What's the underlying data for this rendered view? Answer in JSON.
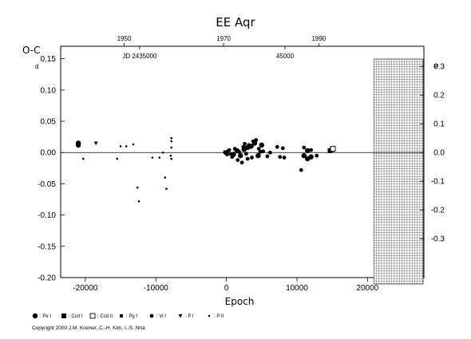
{
  "chart_data": {
    "type": "scatter",
    "title": "EE Aqr",
    "ylabel": "O-C",
    "ylabel_unit": "d",
    "xlabel": "Epoch",
    "xlim": [
      -23500,
      28000
    ],
    "ylim": [
      -0.2,
      0.17
    ],
    "x_ticks": [
      "-20000",
      "-10000",
      "0",
      "10000",
      "20000"
    ],
    "x_tick_values": [
      -20000,
      -10000,
      0,
      10000,
      20000
    ],
    "y_ticks": [
      "-0.20",
      "-0.15",
      "-0.10",
      "-0.05",
      "0.00",
      "0.05",
      "0.10",
      "0.15"
    ],
    "y_tick_values": [
      -0.2,
      -0.15,
      -0.1,
      -0.05,
      0.0,
      0.05,
      0.1,
      0.15
    ],
    "right_ticks": [
      "0.3",
      "0.2",
      "0.1",
      "0.0",
      "-0.1",
      "-0.2",
      "-0.3"
    ],
    "right_tick_values": [
      0.3,
      0.2,
      0.1,
      0.0,
      -0.1,
      -0.2,
      -0.3
    ],
    "right_unit": "P",
    "top_year_ticks": [
      "1950",
      "1970",
      "1990"
    ],
    "top_year_epochs": [
      -14500,
      -400,
      13100
    ],
    "jd_labels": [
      "JD 2435000",
      "45000"
    ],
    "jd_epochs": [
      -12300,
      8300
    ],
    "grid_region_x": [
      20900,
      28000
    ],
    "zero_line": true,
    "series": [
      {
        "name": ": Pe I",
        "marker": "filled-circle-large",
        "points": [
          [
            -21000,
            0.015
          ],
          [
            -21000,
            0.012
          ],
          [
            1000,
            -0.003
          ],
          [
            1500,
            0.003
          ],
          [
            2000,
            -0.005
          ],
          [
            2500,
            0.005
          ],
          [
            3000,
            0.008
          ],
          [
            3500,
            0.01
          ],
          [
            4000,
            0.015
          ],
          [
            4500,
            -0.005
          ],
          [
            5000,
            0.012
          ],
          [
            11000,
            -0.005
          ],
          [
            11500,
            0.003
          ],
          [
            12000,
            -0.007
          ],
          [
            11500,
            -0.01
          ]
        ]
      },
      {
        "name": ": Ccd I",
        "marker": "filled-square",
        "points": [
          [
            14700,
            0.003
          ],
          [
            15000,
            0.005
          ]
        ]
      },
      {
        "name": ": Ccd II",
        "marker": "open-square",
        "points": [
          [
            15100,
            0.006
          ]
        ]
      },
      {
        "name": ": Pg I",
        "marker": "filled-square-small",
        "points": [
          [
            -200,
            0.001
          ],
          [
            200,
            0.002
          ],
          [
            600,
            -0.002
          ]
        ]
      },
      {
        "name": ": Vi I",
        "marker": "filled-circle",
        "points": [
          [
            -200,
            0.0
          ],
          [
            100,
            -0.003
          ],
          [
            400,
            0.004
          ],
          [
            800,
            -0.007
          ],
          [
            1200,
            0.006
          ],
          [
            1600,
            -0.012
          ],
          [
            1800,
            0.001
          ],
          [
            2200,
            -0.016
          ],
          [
            2400,
            0.009
          ],
          [
            2800,
            -0.002
          ],
          [
            3200,
            0.012
          ],
          [
            3600,
            -0.008
          ],
          [
            3800,
            0.018
          ],
          [
            4200,
            0.02
          ],
          [
            4600,
            0.006
          ],
          [
            5200,
            0.002
          ],
          [
            5800,
            -0.006
          ],
          [
            6200,
            0.0
          ],
          [
            7200,
            0.009
          ],
          [
            7600,
            -0.007
          ],
          [
            8000,
            0.007
          ],
          [
            8200,
            -0.008
          ],
          [
            10600,
            -0.028
          ],
          [
            11000,
            0.008
          ],
          [
            12000,
            0.004
          ],
          [
            12800,
            -0.005
          ],
          [
            2600,
            0.014
          ],
          [
            3000,
            -0.01
          ],
          [
            4800,
            0.001
          ]
        ]
      },
      {
        "name": ": P I",
        "marker": "triangle",
        "points": [
          [
            -18500,
            0.015
          ]
        ]
      },
      {
        "name": ": P II",
        "marker": "dot",
        "points": [
          [
            -20300,
            -0.01
          ],
          [
            -15500,
            -0.01
          ],
          [
            -15000,
            0.01
          ],
          [
            -14200,
            0.01
          ],
          [
            -13200,
            0.013
          ],
          [
            -12600,
            -0.056
          ],
          [
            -12400,
            -0.078
          ],
          [
            -10500,
            -0.008
          ],
          [
            -9500,
            -0.008
          ],
          [
            -8700,
            -0.04
          ],
          [
            -8500,
            -0.058
          ],
          [
            -7800,
            0.023
          ],
          [
            -7800,
            0.018
          ],
          [
            -7800,
            0.008
          ],
          [
            -7900,
            -0.005
          ],
          [
            -7800,
            -0.01
          ],
          [
            -9000,
            0.0
          ]
        ]
      }
    ]
  },
  "copyright": "Copyright 2000 J.M. Kreiner, C.-H. Kim, I.-S. Nha"
}
